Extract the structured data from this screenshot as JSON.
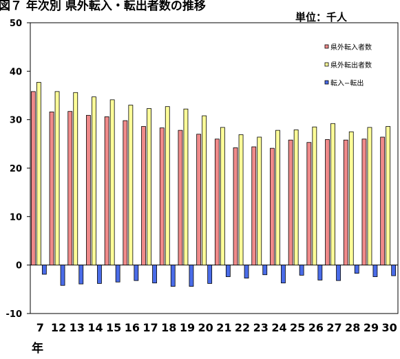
{
  "chart_data": {
    "type": "bar",
    "title": "図７ 年次別 県外転入・転出者数の推移",
    "unit_label": "単位：千人",
    "x_suffix": "年",
    "categories": [
      "7",
      "12",
      "13",
      "14",
      "15",
      "16",
      "17",
      "18",
      "19",
      "20",
      "21",
      "22",
      "23",
      "24",
      "25",
      "26",
      "27",
      "28",
      "29",
      "30"
    ],
    "ylim": [
      -10,
      50
    ],
    "yticks": [
      -10,
      0,
      10,
      20,
      30,
      40,
      50
    ],
    "grid": false,
    "legend_position": "top-right",
    "series": [
      {
        "name": "県外転入者数",
        "color": "#F08A8A",
        "values": [
          35.8,
          31.6,
          31.7,
          30.9,
          30.6,
          29.8,
          28.6,
          28.3,
          27.8,
          27.0,
          26.0,
          24.2,
          24.4,
          24.1,
          25.8,
          25.3,
          25.9,
          25.8,
          26.0,
          26.4
        ]
      },
      {
        "name": "県外転出者数",
        "color": "#FFFF99",
        "values": [
          37.7,
          35.8,
          35.6,
          34.7,
          34.1,
          33.0,
          32.3,
          32.7,
          32.2,
          30.8,
          28.4,
          26.9,
          26.4,
          27.8,
          27.9,
          28.5,
          29.2,
          27.5,
          28.4,
          28.6
        ]
      },
      {
        "name": "転入−転出",
        "color": "#4A6CE8",
        "values": [
          -1.9,
          -4.2,
          -3.9,
          -3.8,
          -3.5,
          -3.2,
          -3.7,
          -4.4,
          -4.4,
          -3.8,
          -2.4,
          -2.7,
          -2.0,
          -3.7,
          -2.1,
          -3.1,
          -3.2,
          -1.7,
          -2.4,
          -2.2
        ]
      }
    ]
  }
}
